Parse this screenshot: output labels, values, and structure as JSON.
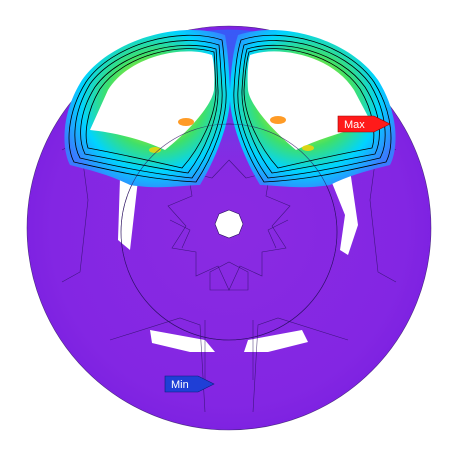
{
  "markers": {
    "max_label": "Max",
    "min_label": "Min",
    "max_color": "#ff1a1a",
    "min_color": "#1f3fd6"
  },
  "colors": {
    "background": "#ffffff",
    "field_low": "#8a2be2",
    "field_low_dark": "#7a1fe0",
    "field_mid": "#00cfff",
    "field_mid_high": "#1fe07a",
    "field_high": "#c8f000",
    "field_peak": "#ffb000",
    "slot": "#ffffff",
    "contour_line": "#000000"
  }
}
